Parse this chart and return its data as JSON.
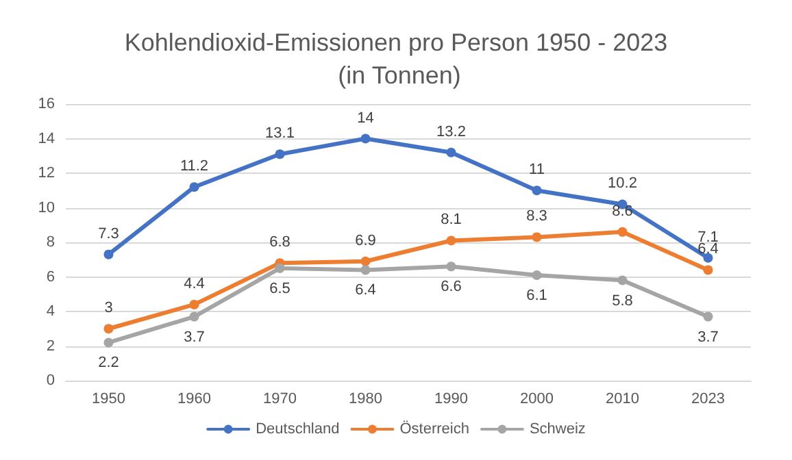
{
  "chart_data": {
    "type": "line",
    "title": "Kohlendioxid-Emissionen pro Person 1950 - 2023 (in Tonnen)",
    "categories": [
      "1950",
      "1960",
      "1970",
      "1980",
      "1990",
      "2000",
      "2010",
      "2023"
    ],
    "series": [
      {
        "name": "Deutschland",
        "color": "#4472c4",
        "values": [
          7.3,
          11.2,
          13.1,
          14,
          13.2,
          11,
          10.2,
          7.1
        ]
      },
      {
        "name": "Österreich",
        "color": "#ed7d31",
        "values": [
          3,
          4.4,
          6.8,
          6.9,
          8.1,
          8.3,
          8.6,
          6.4
        ]
      },
      {
        "name": "Schweiz",
        "color": "#a5a5a5",
        "values": [
          2.2,
          3.7,
          6.5,
          6.4,
          6.6,
          6.1,
          5.8,
          3.7
        ]
      }
    ],
    "ylim": [
      0,
      16
    ],
    "yticks": [
      0,
      2,
      4,
      6,
      8,
      10,
      12,
      14,
      16
    ],
    "grid": "y",
    "legend": "bottom",
    "marker": "circle",
    "line_style": "solid",
    "data_labels": true
  }
}
